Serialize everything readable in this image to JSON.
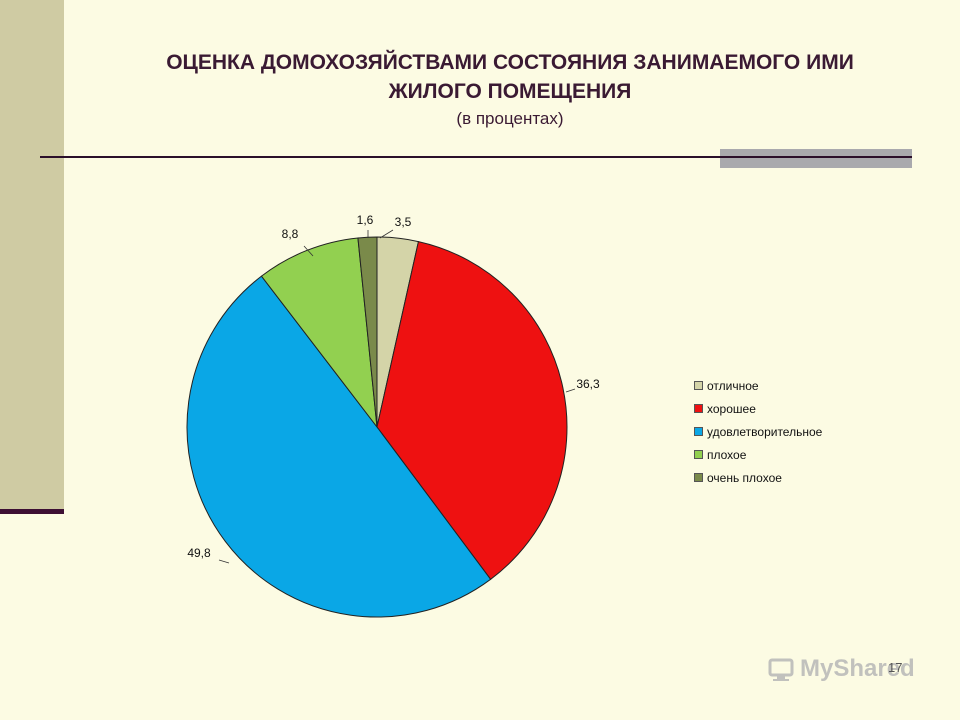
{
  "slide": {
    "title_line1": "ОЦЕНКА ДОМОХОЗЯЙСТВАМИ СОСТОЯНИЯ ЗАНИМАЕМОГО ИМИ",
    "title_line2": "ЖИЛОГО ПОМЕЩЕНИЯ",
    "subtitle": "(в процентах)",
    "page_number": "17",
    "watermark": "MyShared"
  },
  "chart_data": {
    "type": "pie",
    "title": "ОЦЕНКА ДОМОХОЗЯЙСТВАМИ СОСТОЯНИЯ ЗАНИМАЕМОГО ИМИ ЖИЛОГО ПОМЕЩЕНИЯ",
    "subtitle": "(в процентах)",
    "categories": [
      "отличное",
      "хорошее",
      "удовлетворительное",
      "плохое",
      "очень плохое"
    ],
    "values": [
      3.5,
      36.3,
      49.8,
      8.8,
      1.6
    ],
    "value_labels": [
      "3,5",
      "36,3",
      "49,8",
      "8,8",
      "1,6"
    ],
    "colors": [
      "#d4d4a8",
      "#ee1111",
      "#0aa7e6",
      "#92d050",
      "#7a8a4a"
    ],
    "legend_position": "right",
    "start_angle": "top",
    "direction": "clockwise"
  }
}
